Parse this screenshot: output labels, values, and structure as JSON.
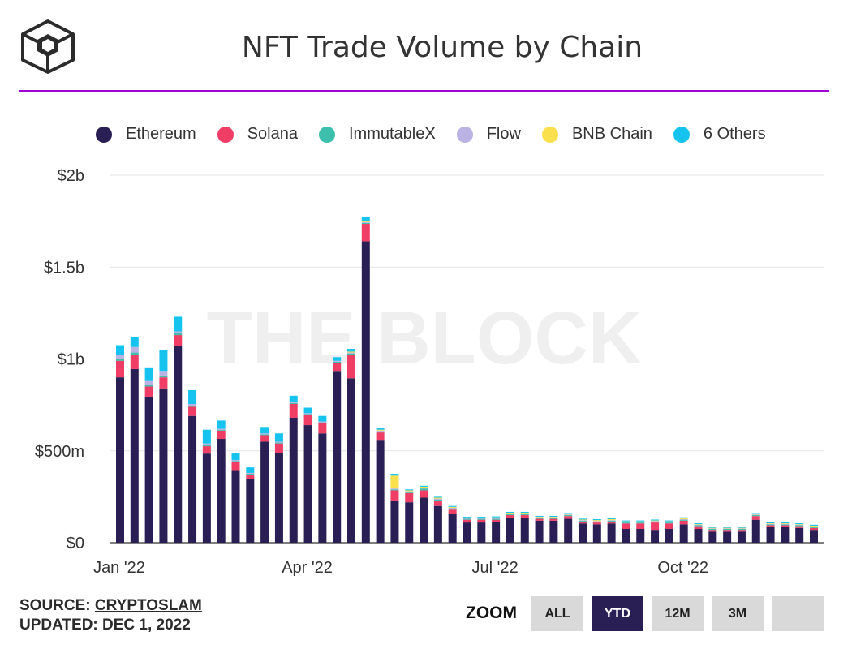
{
  "title": "NFT Trade Volume by Chain",
  "watermark": "THE BLOCK",
  "legend": [
    {
      "name": "Ethereum",
      "color": "#2a1f55"
    },
    {
      "name": "Solana",
      "color": "#ef3d66"
    },
    {
      "name": "ImmutableX",
      "color": "#3dbfae"
    },
    {
      "name": "Flow",
      "color": "#b9b2e3"
    },
    {
      "name": "BNB Chain",
      "color": "#fbe04e"
    },
    {
      "name": "6 Others",
      "color": "#16c3ef"
    }
  ],
  "footer": {
    "source_prefix": "SOURCE: ",
    "source_name": "CRYPTOSLAM",
    "updated": "UPDATED: DEC 1, 2022"
  },
  "zoom": {
    "label": "ZOOM",
    "buttons": [
      {
        "label": "ALL",
        "active": false
      },
      {
        "label": "YTD",
        "active": true
      },
      {
        "label": "12M",
        "active": false
      },
      {
        "label": "3M",
        "active": false
      },
      {
        "label": "",
        "active": false
      }
    ]
  },
  "chart_data": {
    "type": "bar",
    "stacked": true,
    "title": "NFT Trade Volume by Chain",
    "xlabel": "",
    "ylabel": "",
    "ylim": [
      0,
      2000000000
    ],
    "yticks": [
      {
        "value": 0,
        "label": "$0"
      },
      {
        "value": 500000000,
        "label": "$500m"
      },
      {
        "value": 1000000000,
        "label": "$1b"
      },
      {
        "value": 1500000000,
        "label": "$1.5b"
      },
      {
        "value": 2000000000,
        "label": "$2b"
      }
    ],
    "xticks": [
      {
        "index": 0,
        "label": "Jan '22"
      },
      {
        "index": 13,
        "label": "Apr '22"
      },
      {
        "index": 26,
        "label": "Jul '22"
      },
      {
        "index": 39,
        "label": "Oct '22"
      }
    ],
    "grid": true,
    "legend_position": "top",
    "x": [
      "2022-01-02",
      "2022-01-09",
      "2022-01-16",
      "2022-01-23",
      "2022-01-30",
      "2022-02-06",
      "2022-02-13",
      "2022-02-20",
      "2022-02-27",
      "2022-03-06",
      "2022-03-13",
      "2022-03-20",
      "2022-03-27",
      "2022-04-03",
      "2022-04-10",
      "2022-04-17",
      "2022-04-24",
      "2022-05-01",
      "2022-05-08",
      "2022-05-15",
      "2022-05-22",
      "2022-05-29",
      "2022-06-05",
      "2022-06-12",
      "2022-06-19",
      "2022-06-26",
      "2022-07-03",
      "2022-07-10",
      "2022-07-17",
      "2022-07-24",
      "2022-07-31",
      "2022-08-07",
      "2022-08-14",
      "2022-08-21",
      "2022-08-28",
      "2022-09-04",
      "2022-09-11",
      "2022-09-18",
      "2022-09-25",
      "2022-10-02",
      "2022-10-09",
      "2022-10-16",
      "2022-10-23",
      "2022-10-30",
      "2022-11-06",
      "2022-11-13",
      "2022-11-20",
      "2022-11-27",
      "2022-12-04"
    ],
    "series": [
      {
        "name": "Ethereum",
        "color": "#2a1f55",
        "values": [
          900000000,
          945000000,
          795000000,
          840000000,
          1070000000,
          690000000,
          485000000,
          565000000,
          395000000,
          345000000,
          550000000,
          490000000,
          680000000,
          640000000,
          595000000,
          935000000,
          895000000,
          1640000000,
          560000000,
          230000000,
          220000000,
          245000000,
          200000000,
          155000000,
          110000000,
          110000000,
          115000000,
          135000000,
          135000000,
          120000000,
          120000000,
          130000000,
          105000000,
          100000000,
          105000000,
          75000000,
          75000000,
          70000000,
          75000000,
          100000000,
          75000000,
          60000000,
          60000000,
          60000000,
          125000000,
          85000000,
          85000000,
          80000000,
          70000000
        ]
      },
      {
        "name": "Solana",
        "color": "#ef3d66",
        "values": [
          90000000,
          75000000,
          55000000,
          60000000,
          60000000,
          50000000,
          40000000,
          45000000,
          45000000,
          25000000,
          35000000,
          50000000,
          75000000,
          55000000,
          55000000,
          45000000,
          125000000,
          95000000,
          40000000,
          55000000,
          50000000,
          40000000,
          25000000,
          25000000,
          15000000,
          15000000,
          10000000,
          15000000,
          15000000,
          10000000,
          10000000,
          15000000,
          10000000,
          10000000,
          10000000,
          30000000,
          30000000,
          40000000,
          30000000,
          20000000,
          15000000,
          10000000,
          10000000,
          10000000,
          20000000,
          10000000,
          10000000,
          10000000,
          10000000
        ]
      },
      {
        "name": "ImmutableX",
        "color": "#3dbfae",
        "values": [
          10000000,
          15000000,
          10000000,
          10000000,
          10000000,
          5000000,
          5000000,
          5000000,
          5000000,
          5000000,
          5000000,
          5000000,
          5000000,
          5000000,
          5000000,
          5000000,
          10000000,
          5000000,
          5000000,
          5000000,
          5000000,
          10000000,
          10000000,
          5000000,
          5000000,
          5000000,
          5000000,
          5000000,
          5000000,
          5000000,
          5000000,
          5000000,
          5000000,
          5000000,
          5000000,
          5000000,
          5000000,
          5000000,
          5000000,
          5000000,
          5000000,
          5000000,
          5000000,
          5000000,
          5000000,
          5000000,
          5000000,
          5000000,
          5000000
        ]
      },
      {
        "name": "Flow",
        "color": "#b9b2e3",
        "values": [
          20000000,
          30000000,
          20000000,
          25000000,
          10000000,
          10000000,
          10000000,
          5000000,
          5000000,
          5000000,
          5000000,
          5000000,
          5000000,
          5000000,
          5000000,
          5000000,
          5000000,
          5000000,
          5000000,
          5000000,
          5000000,
          5000000,
          5000000,
          5000000,
          3000000,
          3000000,
          3000000,
          3000000,
          3000000,
          3000000,
          3000000,
          3000000,
          3000000,
          3000000,
          3000000,
          3000000,
          3000000,
          3000000,
          3000000,
          3000000,
          3000000,
          3000000,
          3000000,
          3000000,
          3000000,
          3000000,
          3000000,
          3000000,
          3000000
        ]
      },
      {
        "name": "BNB Chain",
        "color": "#fbe04e",
        "values": [
          0,
          0,
          0,
          0,
          0,
          0,
          0,
          0,
          0,
          0,
          0,
          0,
          0,
          0,
          0,
          0,
          5000000,
          5000000,
          5000000,
          70000000,
          5000000,
          5000000,
          5000000,
          5000000,
          3000000,
          3000000,
          5000000,
          5000000,
          5000000,
          3000000,
          3000000,
          3000000,
          3000000,
          5000000,
          5000000,
          3000000,
          3000000,
          3000000,
          3000000,
          5000000,
          3000000,
          3000000,
          3000000,
          3000000,
          3000000,
          3000000,
          3000000,
          3000000,
          5000000
        ]
      },
      {
        "name": "6 Others",
        "color": "#16c3ef",
        "values": [
          55000000,
          55000000,
          70000000,
          115000000,
          80000000,
          75000000,
          75000000,
          45000000,
          40000000,
          30000000,
          35000000,
          45000000,
          35000000,
          30000000,
          30000000,
          20000000,
          15000000,
          25000000,
          10000000,
          10000000,
          5000000,
          5000000,
          5000000,
          5000000,
          5000000,
          5000000,
          5000000,
          5000000,
          5000000,
          5000000,
          5000000,
          5000000,
          5000000,
          5000000,
          5000000,
          5000000,
          5000000,
          5000000,
          5000000,
          5000000,
          5000000,
          5000000,
          5000000,
          5000000,
          5000000,
          5000000,
          5000000,
          5000000,
          5000000
        ]
      }
    ]
  }
}
